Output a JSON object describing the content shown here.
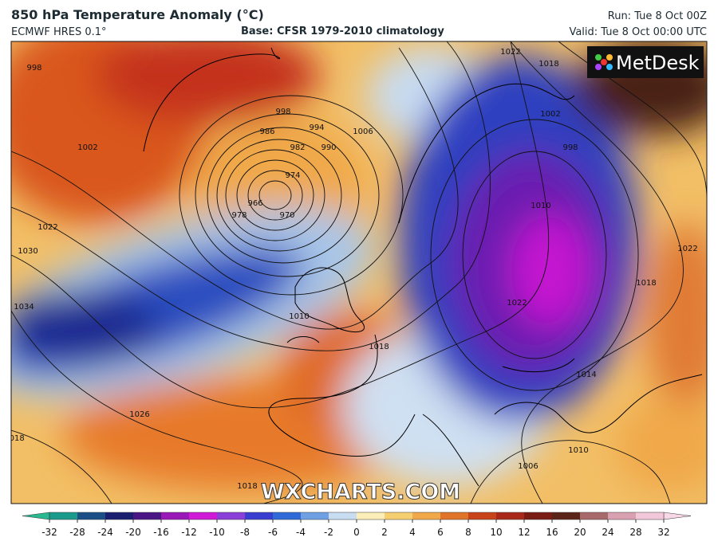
{
  "header": {
    "title": "850 hPa Temperature Anomaly (°C)",
    "model": "ECMWF HRES 0.1°",
    "base": "Base: CFSR 1979-2010 climatology",
    "run": "Run: Tue 8 Oct 00Z",
    "valid": "Valid: Tue 8 Oct 00:00 UTC"
  },
  "map": {
    "logo": "MetDesk",
    "watermark": "WXCHARTS.COM",
    "isobar_labels": [
      998,
      1002,
      1022,
      1030,
      1034,
      1026,
      1018,
      998,
      986,
      994,
      990,
      982,
      974,
      966,
      970,
      978,
      1006,
      1010,
      1018,
      1018,
      1022,
      1018,
      1002,
      998,
      1010,
      1022,
      1018,
      1022,
      1014,
      1006,
      1010
    ]
  },
  "colorbar": {
    "ticks": [
      -32,
      -28,
      -24,
      -20,
      -16,
      -12,
      -10,
      -8,
      -6,
      -4,
      -2,
      0,
      2,
      4,
      6,
      8,
      10,
      12,
      16,
      20,
      24,
      28,
      32
    ],
    "colors": [
      "#1a9a8a",
      "#1c4f86",
      "#1a1f70",
      "#4a1585",
      "#9b18b8",
      "#d01ad8",
      "#8a3fd8",
      "#3a3ed0",
      "#2f6ad8",
      "#6fa0e4",
      "#c8dcf2",
      "#fbeeb8",
      "#f6d070",
      "#f0a848",
      "#e07428",
      "#c8421a",
      "#a8281a",
      "#7a1c14",
      "#5a2418",
      "#a86a6a",
      "#d8a0b0",
      "#f2c8d8"
    ],
    "low_color": "#2ab890",
    "high_color": "#f8d8e6"
  }
}
